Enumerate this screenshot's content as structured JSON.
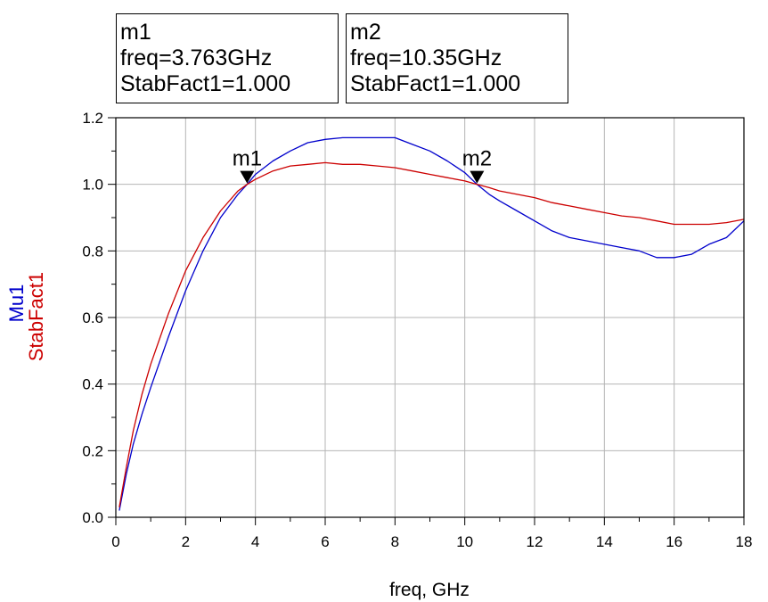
{
  "chart_data": {
    "type": "line",
    "xlabel": "freq, GHz",
    "ylabels": [
      {
        "text": "Mu1",
        "color": "#0000cc"
      },
      {
        "text": "StabFact1",
        "color": "#cc0000"
      }
    ],
    "xlim": [
      0,
      18
    ],
    "ylim": [
      0,
      1.2
    ],
    "xticks": [
      "0",
      "2",
      "4",
      "6",
      "8",
      "10",
      "12",
      "14",
      "16",
      "18"
    ],
    "yticks": [
      "0.0",
      "0.2",
      "0.4",
      "0.6",
      "0.8",
      "1.0",
      "1.2"
    ],
    "grid": true,
    "series": [
      {
        "name": "Mu1",
        "color": "#0000cc",
        "x": [
          0.1,
          0.3,
          0.5,
          0.75,
          1,
          1.5,
          2,
          2.5,
          3,
          3.5,
          3.763,
          4,
          4.5,
          5,
          5.5,
          6,
          6.5,
          7,
          7.5,
          8,
          8.5,
          9,
          9.5,
          10,
          10.35,
          10.7,
          11,
          11.5,
          12,
          12.5,
          13,
          13.5,
          14,
          14.5,
          15,
          15.5,
          16,
          16.5,
          17,
          17.5,
          18
        ],
        "y": [
          0.02,
          0.13,
          0.22,
          0.31,
          0.39,
          0.54,
          0.68,
          0.8,
          0.9,
          0.97,
          1.0,
          1.03,
          1.07,
          1.1,
          1.125,
          1.135,
          1.14,
          1.14,
          1.14,
          1.14,
          1.12,
          1.1,
          1.07,
          1.035,
          1.0,
          0.97,
          0.95,
          0.92,
          0.89,
          0.86,
          0.84,
          0.83,
          0.82,
          0.81,
          0.8,
          0.78,
          0.78,
          0.79,
          0.82,
          0.84,
          0.89
        ]
      },
      {
        "name": "StabFact1",
        "color": "#cc0000",
        "x": [
          0.1,
          0.3,
          0.5,
          0.75,
          1,
          1.5,
          2,
          2.5,
          3,
          3.5,
          3.763,
          4,
          4.5,
          5,
          5.5,
          6,
          6.5,
          7,
          7.5,
          8,
          8.5,
          9,
          9.5,
          10,
          10.35,
          10.7,
          11,
          11.5,
          12,
          12.5,
          13,
          13.5,
          14,
          14.5,
          15,
          15.5,
          16,
          16.5,
          17,
          17.5,
          18
        ],
        "y": [
          0.03,
          0.15,
          0.26,
          0.37,
          0.46,
          0.61,
          0.74,
          0.84,
          0.92,
          0.98,
          1.0,
          1.015,
          1.04,
          1.055,
          1.06,
          1.065,
          1.06,
          1.06,
          1.055,
          1.05,
          1.04,
          1.03,
          1.02,
          1.01,
          1.0,
          0.99,
          0.98,
          0.97,
          0.96,
          0.945,
          0.935,
          0.925,
          0.915,
          0.905,
          0.9,
          0.89,
          0.88,
          0.88,
          0.88,
          0.885,
          0.895
        ]
      }
    ],
    "markers": [
      {
        "label": "m1",
        "freq_text": "freq=3.763GHz",
        "value_text": "StabFact1=1.000",
        "x": 3.763,
        "y": 1.0
      },
      {
        "label": "m2",
        "freq_text": "freq=10.35GHz",
        "value_text": "StabFact1=1.000",
        "x": 10.35,
        "y": 1.0
      }
    ]
  }
}
